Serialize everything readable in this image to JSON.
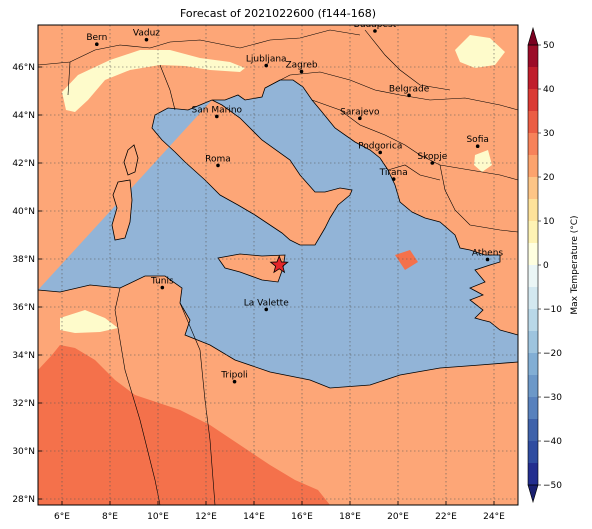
{
  "title": "Forecast of 2021022600 (f144-168)",
  "map": {
    "lon_range": [
      5,
      25
    ],
    "lat_range": [
      27.75,
      47.75
    ],
    "lon_ticks": [
      {
        "v": 6,
        "label": "6°E"
      },
      {
        "v": 8,
        "label": "8°E"
      },
      {
        "v": 10,
        "label": "10°E"
      },
      {
        "v": 12,
        "label": "12°E"
      },
      {
        "v": 14,
        "label": "14°E"
      },
      {
        "v": 16,
        "label": "16°E"
      },
      {
        "v": 18,
        "label": "18°E"
      },
      {
        "v": 20,
        "label": "20°E"
      },
      {
        "v": 22,
        "label": "22°E"
      },
      {
        "v": 24,
        "label": "24°E"
      }
    ],
    "lat_ticks": [
      {
        "v": 28,
        "label": "28°N"
      },
      {
        "v": 30,
        "label": "30°N"
      },
      {
        "v": 32,
        "label": "32°N"
      },
      {
        "v": 34,
        "label": "34°N"
      },
      {
        "v": 36,
        "label": "36°N"
      },
      {
        "v": 38,
        "label": "38°N"
      },
      {
        "v": 40,
        "label": "40°N"
      },
      {
        "v": 42,
        "label": "42°N"
      },
      {
        "v": 44,
        "label": "44°N"
      },
      {
        "v": 46,
        "label": "46°N"
      }
    ],
    "grid": true,
    "sea_color": "#92b4d7",
    "land_color": "#fda677",
    "warm_color": "#f4714b",
    "cool_color": "#fefbcb",
    "cities": [
      {
        "name": "Bern",
        "lon": 7.45,
        "lat": 46.95
      },
      {
        "name": "Vaduz",
        "lon": 9.52,
        "lat": 47.14
      },
      {
        "name": "Budapest",
        "lon": 19.04,
        "lat": 47.5
      },
      {
        "name": "Ljubljana",
        "lon": 14.51,
        "lat": 46.06
      },
      {
        "name": "Zagreb",
        "lon": 15.98,
        "lat": 45.81
      },
      {
        "name": "Belgrade",
        "lon": 20.46,
        "lat": 44.82
      },
      {
        "name": "San Marino",
        "lon": 12.45,
        "lat": 43.94
      },
      {
        "name": "Sarajevo",
        "lon": 18.41,
        "lat": 43.86
      },
      {
        "name": "Sofia",
        "lon": 23.32,
        "lat": 42.7
      },
      {
        "name": "Podgorica",
        "lon": 19.26,
        "lat": 42.44
      },
      {
        "name": "Skopje",
        "lon": 21.43,
        "lat": 42.0
      },
      {
        "name": "Roma",
        "lon": 12.5,
        "lat": 41.9
      },
      {
        "name": "Tirana",
        "lon": 19.82,
        "lat": 41.33
      },
      {
        "name": "Athens",
        "lon": 23.73,
        "lat": 37.98
      },
      {
        "name": "Tunis",
        "lon": 10.18,
        "lat": 36.81
      },
      {
        "name": "La Valette",
        "lon": 14.51,
        "lat": 35.9
      },
      {
        "name": "Tripoli",
        "lon": 13.19,
        "lat": 32.89
      }
    ],
    "marker": {
      "lon": 15.05,
      "lat": 37.75,
      "color": "#e3262a"
    }
  },
  "colorbar": {
    "label": "Max Temperature (°C)",
    "min": -50,
    "max": 50,
    "ticks": [
      {
        "v": 50,
        "label": "50"
      },
      {
        "v": 40,
        "label": "40"
      },
      {
        "v": 30,
        "label": "30"
      },
      {
        "v": 20,
        "label": "20"
      },
      {
        "v": 10,
        "label": "10"
      },
      {
        "v": 0,
        "label": "0"
      },
      {
        "v": -10,
        "label": "−10"
      },
      {
        "v": -20,
        "label": "−20"
      },
      {
        "v": -30,
        "label": "−30"
      },
      {
        "v": -40,
        "label": "−40"
      },
      {
        "v": -50,
        "label": "−50"
      }
    ],
    "levels": [
      {
        "from": -50,
        "to": -45,
        "color": "#232e8f"
      },
      {
        "from": -45,
        "to": -40,
        "color": "#2f4ca0"
      },
      {
        "from": -40,
        "to": -35,
        "color": "#3f62aa"
      },
      {
        "from": -35,
        "to": -30,
        "color": "#5881bd"
      },
      {
        "from": -30,
        "to": -25,
        "color": "#6c98c8"
      },
      {
        "from": -25,
        "to": -20,
        "color": "#82aed4"
      },
      {
        "from": -20,
        "to": -15,
        "color": "#9ec4de"
      },
      {
        "from": -15,
        "to": -10,
        "color": "#b9d8e8"
      },
      {
        "from": -10,
        "to": -5,
        "color": "#d3e8f0"
      },
      {
        "from": -5,
        "to": 0,
        "color": "#ebf6f6"
      },
      {
        "from": 0,
        "to": 5,
        "color": "#ffffe0"
      },
      {
        "from": 5,
        "to": 10,
        "color": "#fef3b4"
      },
      {
        "from": 10,
        "to": 15,
        "color": "#fee29a"
      },
      {
        "from": 15,
        "to": 20,
        "color": "#fdc586"
      },
      {
        "from": 20,
        "to": 25,
        "color": "#fca36d"
      },
      {
        "from": 25,
        "to": 30,
        "color": "#f7825a"
      },
      {
        "from": 30,
        "to": 35,
        "color": "#eb5d44"
      },
      {
        "from": 35,
        "to": 40,
        "color": "#da3a34"
      },
      {
        "from": 40,
        "to": 45,
        "color": "#c01e2c"
      },
      {
        "from": 45,
        "to": 50,
        "color": "#9b0c28"
      }
    ],
    "under_color": "#1a2070",
    "over_color": "#7a0020"
  }
}
